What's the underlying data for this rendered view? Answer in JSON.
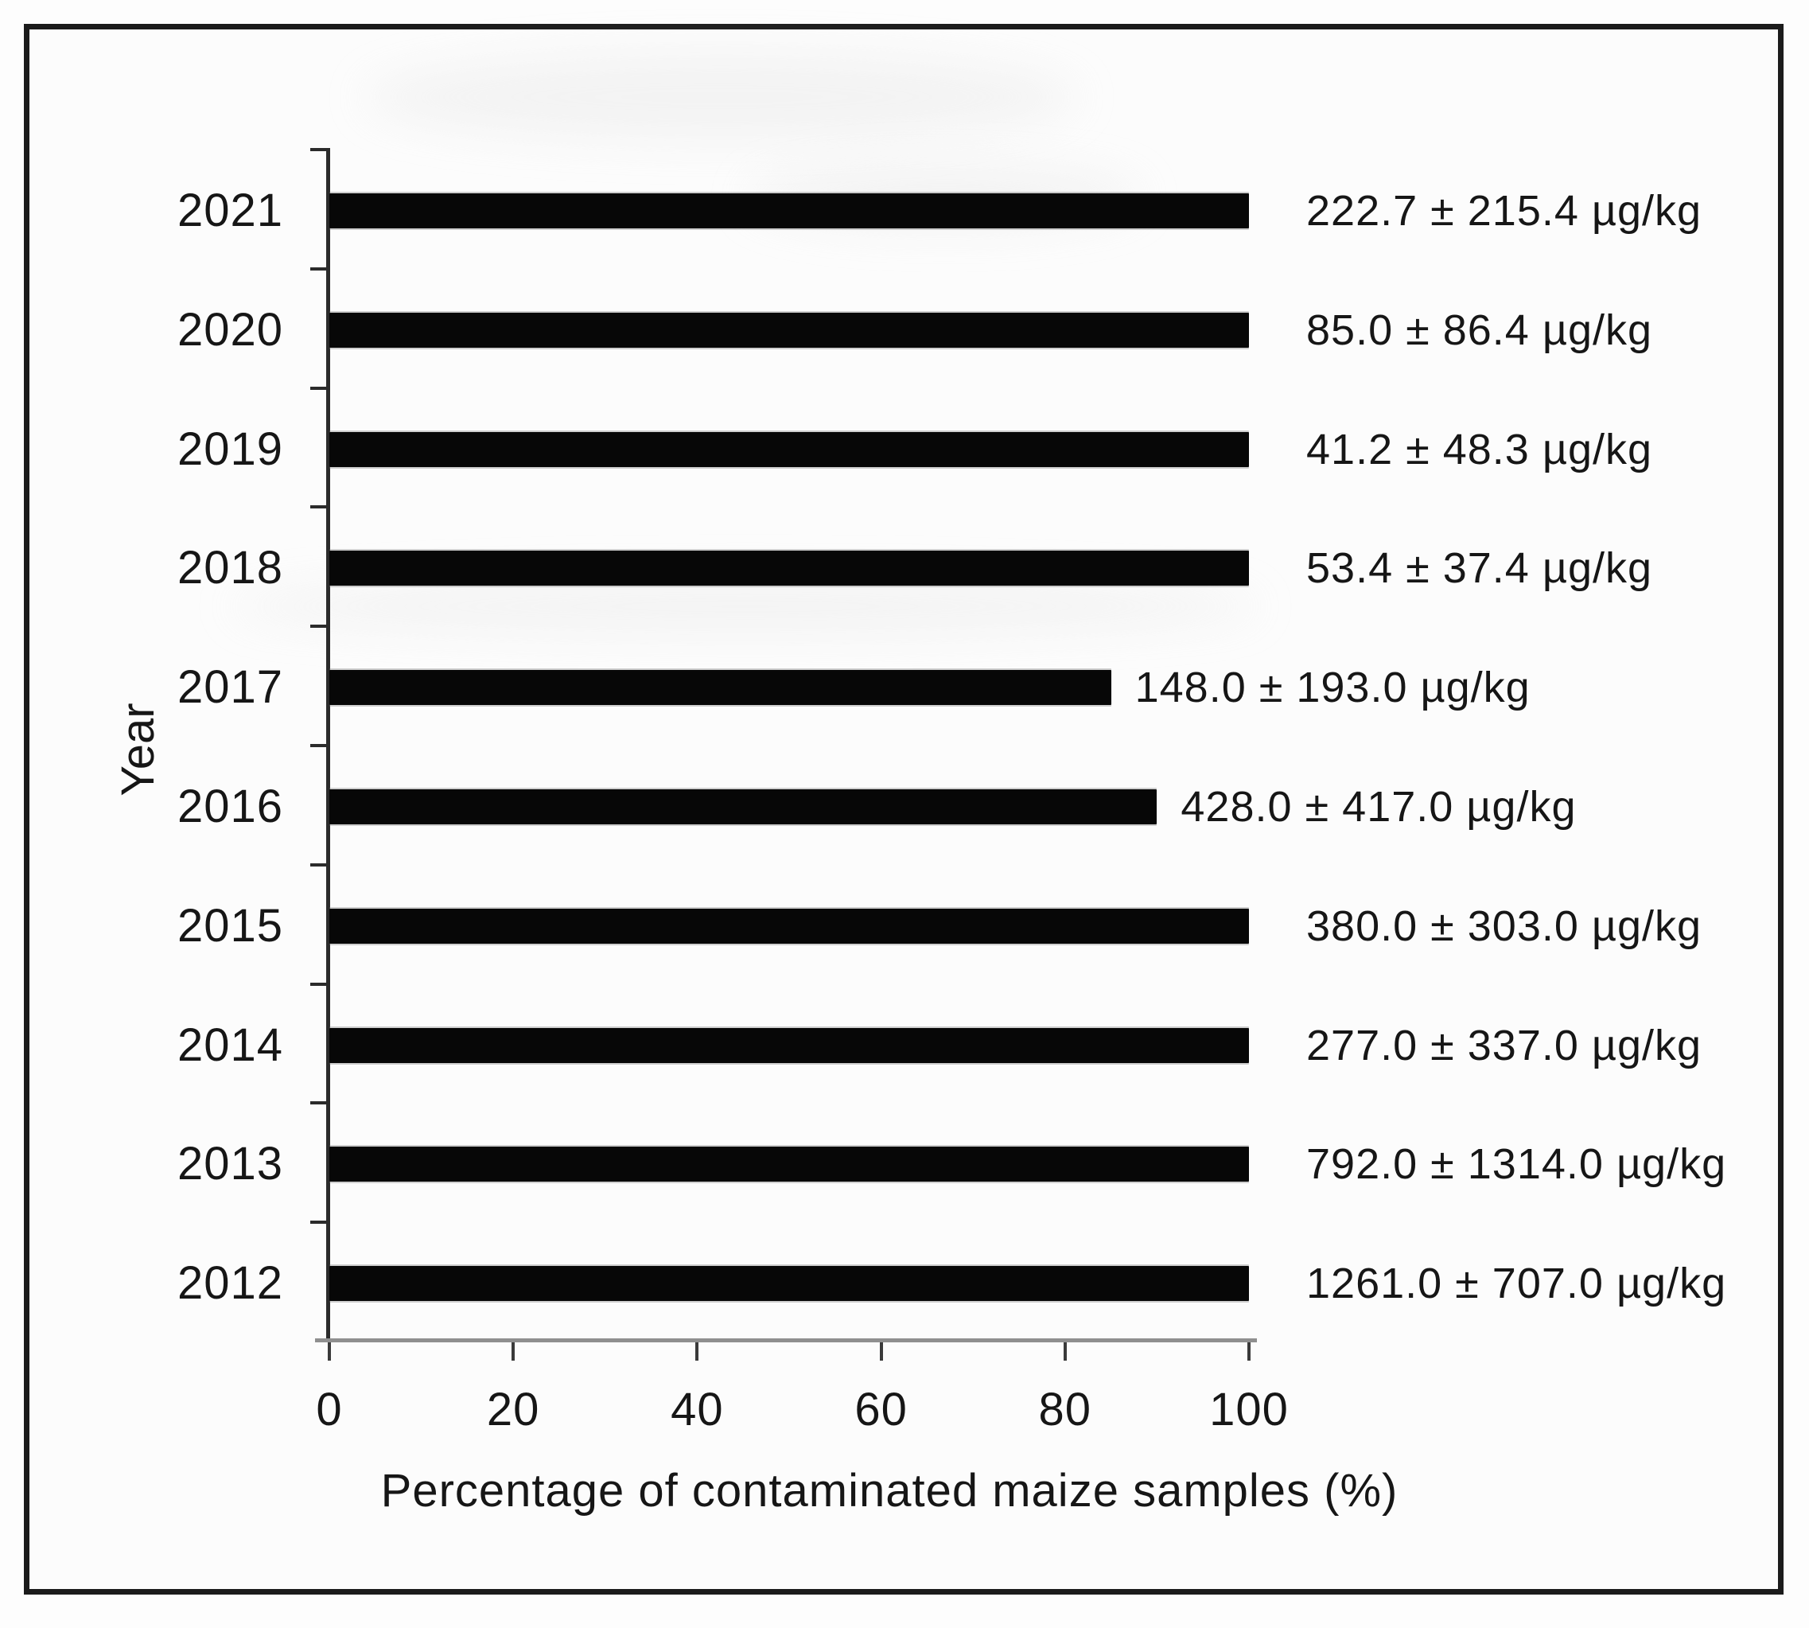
{
  "chart_data": {
    "type": "bar",
    "orientation": "horizontal",
    "title": "",
    "xlabel": "Percentage of contaminated maize samples (%)",
    "ylabel": "Year",
    "xlim": [
      0,
      100
    ],
    "x_ticks": [
      "0",
      "20",
      "40",
      "60",
      "80",
      "100"
    ],
    "grid": false,
    "legend": false,
    "categories": [
      "2021",
      "2020",
      "2019",
      "2018",
      "2017",
      "2016",
      "2015",
      "2014",
      "2013",
      "2012"
    ],
    "values_pct": [
      100,
      100,
      100,
      100,
      85,
      90,
      100,
      100,
      100,
      100
    ],
    "concentrations": [
      {
        "mean": 222.7,
        "sd": 215.4
      },
      {
        "mean": 85.0,
        "sd": 86.4
      },
      {
        "mean": 41.2,
        "sd": 48.3
      },
      {
        "mean": 53.4,
        "sd": 37.4
      },
      {
        "mean": 148.0,
        "sd": 193.0
      },
      {
        "mean": 428.0,
        "sd": 417.0
      },
      {
        "mean": 380.0,
        "sd": 303.0
      },
      {
        "mean": 277.0,
        "sd": 337.0
      },
      {
        "mean": 792.0,
        "sd": 1314.0
      },
      {
        "mean": 1261.0,
        "sd": 707.0
      }
    ],
    "annotations": [
      "222.7 ± 215.4 µg/kg",
      "85.0 ± 86.4 µg/kg",
      "41.2 ± 48.3 µg/kg",
      "53.4 ± 37.4 µg/kg",
      "148.0 ± 193.0 µg/kg",
      "428.0 ± 417.0 µg/kg",
      "380.0 ± 303.0 µg/kg",
      "277.0 ± 337.0 µg/kg",
      "792.0 ± 1314.0 µg/kg",
      "1261.0 ± 707.0 µg/kg"
    ],
    "annotation_unit": "µg/kg"
  },
  "colors": {
    "bar": "#070707",
    "frame_border": "#1b1b1b",
    "plot_background": "#fcfcfc",
    "text": "#161616",
    "y_axis": "#2b2b2b",
    "x_axis_line": "#8f8f8f",
    "tick": "#3a3a3a"
  }
}
